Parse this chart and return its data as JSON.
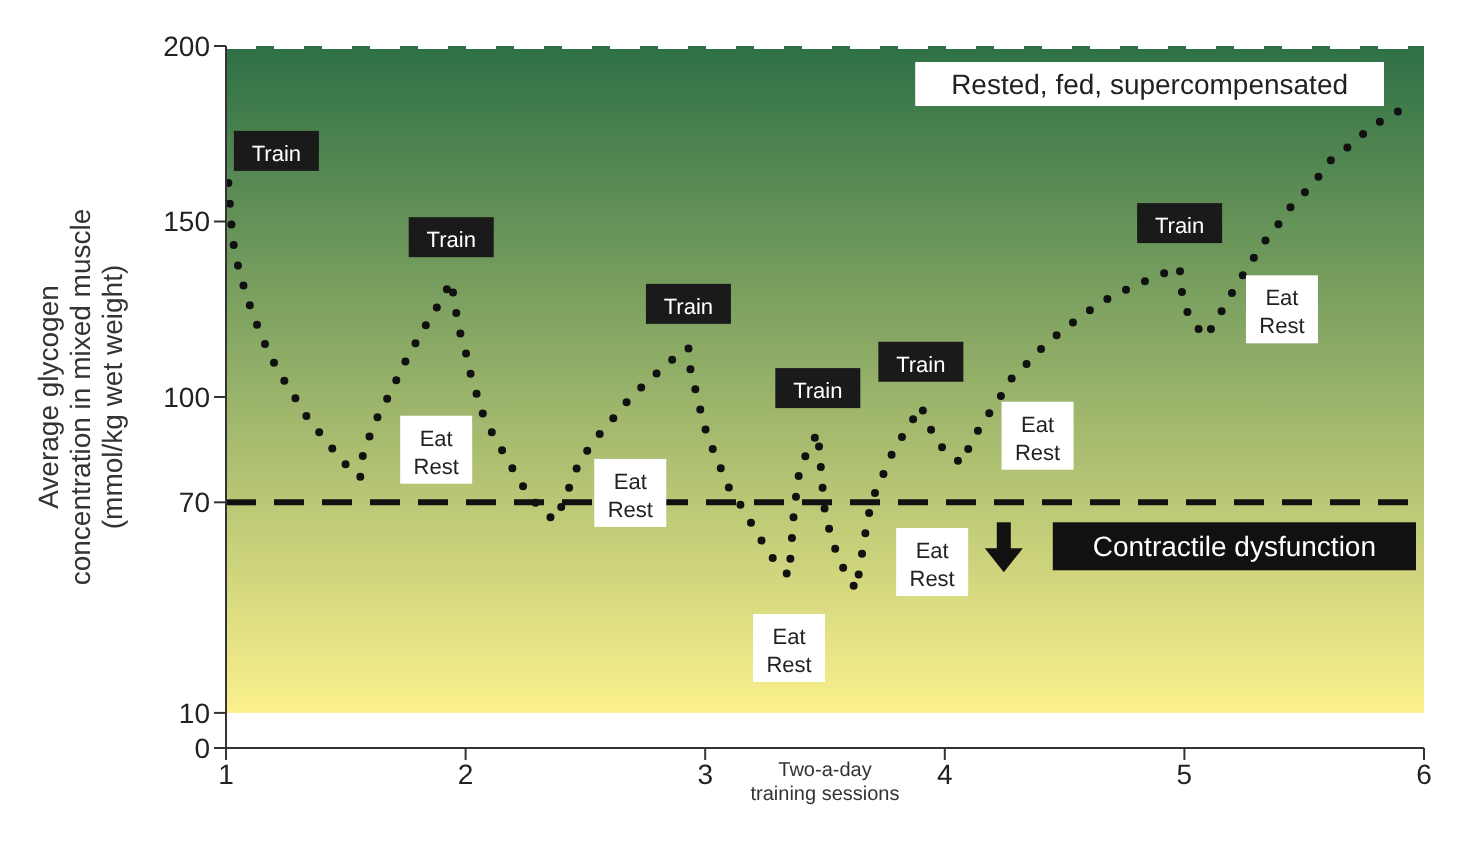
{
  "chart_data": {
    "type": "line",
    "xlabel": "Two-a-day\ntraining sessions",
    "ylabel": "Average glycogen\nconcentration in mixed muscle\n(mmol/kg wet weight)",
    "xlim": [
      1,
      6
    ],
    "xticks": [
      1,
      2,
      3,
      4,
      5,
      6
    ],
    "ylim": [
      0,
      200
    ],
    "yticks": [
      0,
      10,
      70,
      100,
      150,
      200
    ],
    "grid": false,
    "marker": "none",
    "line_style": "dotted",
    "series": [
      {
        "color": "#111111",
        "x": [
          1.01,
          1.02,
          1.03,
          1.05,
          1.08,
          1.11,
          1.15,
          1.19,
          1.24,
          1.3,
          1.35,
          1.42,
          1.48,
          1.56,
          1.57,
          1.6,
          1.64,
          1.69,
          1.73,
          1.78,
          1.83,
          1.89,
          1.94,
          1.97,
          2.0,
          2.02,
          2.05,
          2.08,
          2.13,
          2.18,
          2.23,
          2.29,
          2.37,
          2.42,
          2.45,
          2.5,
          2.56,
          2.63,
          2.69,
          2.77,
          2.85,
          2.93,
          2.94,
          2.97,
          2.99,
          3.02,
          3.06,
          3.1,
          3.15,
          3.21,
          3.27,
          3.35,
          3.37,
          3.39,
          3.42,
          3.47,
          3.49,
          3.5,
          3.53,
          3.57,
          3.63,
          3.68,
          3.71,
          3.75,
          3.79,
          3.85,
          3.9,
          3.94,
          3.99,
          4.07,
          4.11,
          4.16,
          4.22,
          4.27,
          4.35,
          4.42,
          4.51,
          4.59,
          4.67,
          4.77,
          4.87,
          4.98,
          4.99,
          5.02,
          5.09,
          5.16,
          5.21,
          5.27,
          5.32,
          5.39,
          5.45,
          5.54,
          5.6,
          5.69,
          5.78,
          5.9
        ],
        "values": [
          161,
          151,
          144,
          137.5,
          130,
          124,
          117,
          111,
          105,
          98.5,
          93,
          87.5,
          82,
          77,
          83,
          89,
          95.5,
          101.6,
          107.8,
          114,
          120,
          126.6,
          133,
          120,
          113,
          106.8,
          100,
          93.5,
          87.5,
          81.5,
          75.5,
          70,
          64.7,
          71.5,
          78,
          84,
          89.5,
          95,
          100,
          105,
          110,
          114,
          106.8,
          99.5,
          93,
          87,
          80.5,
          74,
          69,
          62,
          55,
          49,
          67,
          77.5,
          83.5,
          90,
          74,
          67,
          59,
          52,
          45,
          66,
          73,
          79,
          85.5,
          91.5,
          97.5,
          91,
          85.5,
          81,
          87,
          93,
          98.5,
          104.7,
          110,
          115,
          120,
          124,
          127.6,
          131,
          134,
          137,
          129.7,
          122.4,
          117,
          125,
          131,
          137.5,
          143,
          149,
          154.7,
          160.8,
          166.9,
          171.6,
          177,
          181.7
        ]
      }
    ],
    "ref_lines": [
      {
        "axis": "y",
        "value": 200,
        "color": "#ffffff",
        "line_style": "dashed"
      },
      {
        "axis": "y",
        "value": 70,
        "color": "#111111",
        "line_style": "dashed",
        "label": "Contractile dysfunction"
      }
    ],
    "bands": [
      {
        "axis": "y",
        "from": 10,
        "to": 200,
        "color": "#2e7045"
      }
    ],
    "annotations": [
      "Rested, fed, supercompensated",
      {
        "text": "Train",
        "x": 1.01,
        "y": 161
      },
      {
        "text": "Train",
        "x": 1.94,
        "y": 133
      },
      {
        "text": "Train",
        "x": 2.93,
        "y": 114
      },
      {
        "text": "Train",
        "x": 3.47,
        "y": 90
      },
      {
        "text": "Train",
        "x": 3.9,
        "y": 97.5
      },
      {
        "text": "Train",
        "x": 4.98,
        "y": 137
      },
      {
        "text": "Eat Rest",
        "x": 1.56,
        "y": 77
      },
      {
        "text": "Eat Rest",
        "x": 2.37,
        "y": 64.7
      },
      {
        "text": "Eat Rest",
        "x": 3.35,
        "y": 49
      },
      {
        "text": "Eat Rest",
        "x": 3.63,
        "y": 45
      },
      {
        "text": "Eat Rest",
        "x": 4.07,
        "y": 81
      },
      {
        "text": "Eat Rest",
        "x": 5.09,
        "y": 117
      }
    ]
  }
}
